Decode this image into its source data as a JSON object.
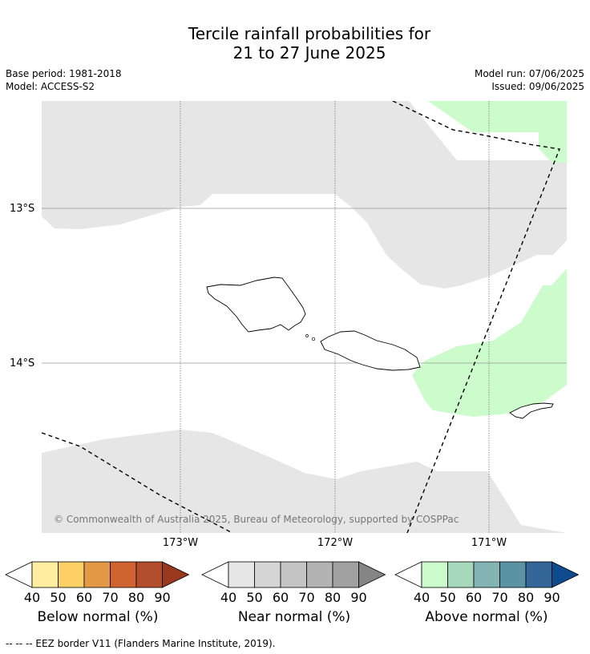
{
  "title": {
    "line1": "Tercile rainfall probabilities for",
    "line2": "21 to 27 June 2025"
  },
  "meta": {
    "base_period": "Base period: 1981-2018",
    "model": "Model: ACCESS-S2",
    "model_run": "Model run: 07/06/2025",
    "issued": "Issued: 09/06/2025"
  },
  "map": {
    "lat_labels": [
      "13°S",
      "14°S"
    ],
    "lon_labels": [
      "173°W",
      "172°W",
      "171°W"
    ],
    "credit": "© Commonwealth of Australia 2025, Bureau of Meteorology, supported by COSPPac",
    "colors": {
      "near_normal_40": "#e6e6e6",
      "above_normal_40": "#ccfccc",
      "ocean": "#ffffff"
    }
  },
  "legend": {
    "below": {
      "label": "Below normal (%)",
      "ticks": [
        "40",
        "50",
        "60",
        "70",
        "80",
        "90"
      ],
      "colors": [
        "#ffeda0",
        "#fed166",
        "#e39a46",
        "#d06332",
        "#b14d2a",
        "#97381f"
      ]
    },
    "near": {
      "label": "Near normal (%)",
      "ticks": [
        "40",
        "50",
        "60",
        "70",
        "80",
        "90"
      ],
      "colors": [
        "#e6e6e6",
        "#d5d5d5",
        "#c4c4c4",
        "#b3b3b3",
        "#a1a1a1",
        "#858585"
      ]
    },
    "above": {
      "label": "Above normal (%)",
      "ticks": [
        "40",
        "50",
        "60",
        "70",
        "80",
        "90"
      ],
      "colors": [
        "#ccfccc",
        "#a6d8bb",
        "#82b5b3",
        "#5b93a3",
        "#346699",
        "#0e4a8e"
      ]
    }
  },
  "footer": "--  --  -- EEZ border V11 (Flanders Marine Institute, 2019)."
}
